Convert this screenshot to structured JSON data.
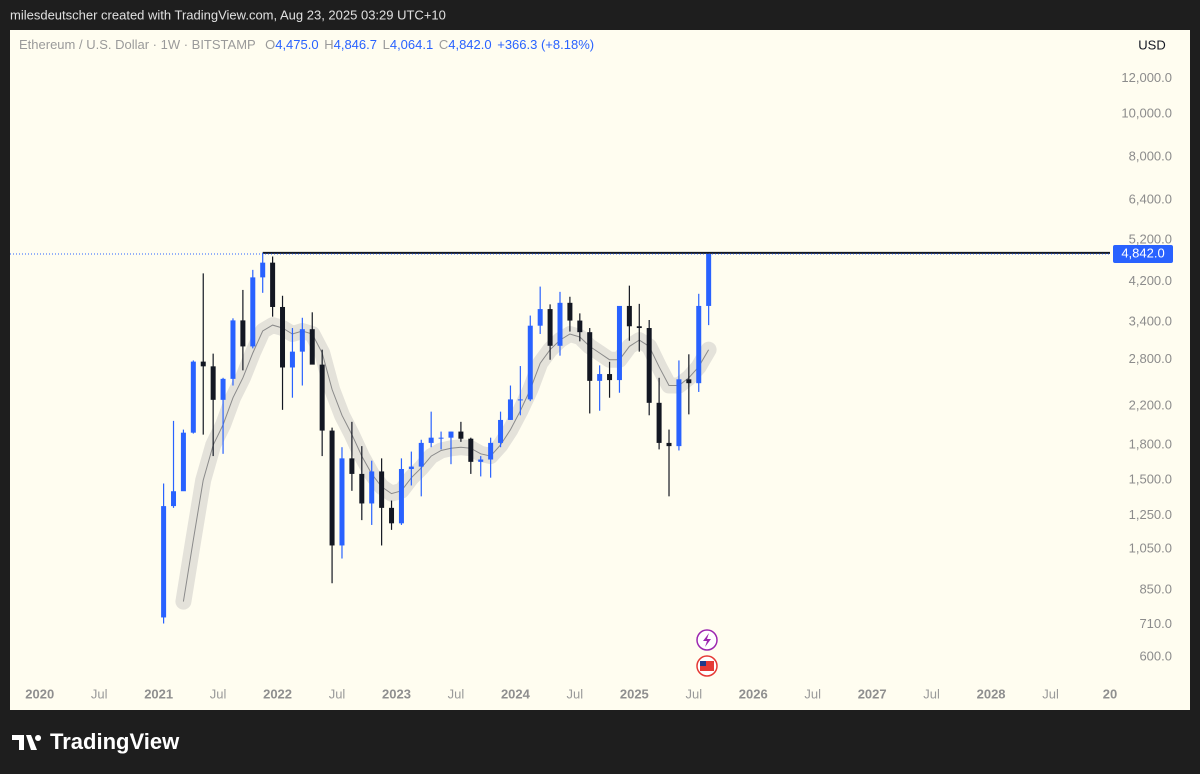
{
  "header": {
    "text": "milesdeutscher created with TradingView.com, Aug 23, 2025 03:29 UTC+10"
  },
  "footer": {
    "brand": "TradingView"
  },
  "chart_data": {
    "type": "candlestick",
    "symbol": "Ethereum / U.S. Dollar · 1W · BITSTAMP",
    "ohlc": [
      {
        "key": "O",
        "value": "4,475.0"
      },
      {
        "key": "H",
        "value": "4,846.7"
      },
      {
        "key": "L",
        "value": "4,064.1"
      },
      {
        "key": "C",
        "value": "4,842.0"
      }
    ],
    "change": "+366.3 (+8.18%)",
    "currency": "USD",
    "log_scale": true,
    "grid": false,
    "up_color": "#2962ff",
    "down_color": "#131722",
    "xlim": [
      "2019-10",
      "2029-01"
    ],
    "ylim": [
      533,
      15450
    ],
    "yticks": [
      {
        "value": 12000,
        "label": "12,000.0"
      },
      {
        "value": 10000,
        "label": "10,000.0"
      },
      {
        "value": 8000,
        "label": "8,000.0"
      },
      {
        "value": 6400,
        "label": "6,400.0"
      },
      {
        "value": 5200,
        "label": "5,200.0"
      },
      {
        "value": 4200,
        "label": "4,200.0"
      },
      {
        "value": 3400,
        "label": "3,400.0"
      },
      {
        "value": 2800,
        "label": "2,800.0"
      },
      {
        "value": 2200,
        "label": "2,200.0"
      },
      {
        "value": 1800,
        "label": "1,800.0"
      },
      {
        "value": 1500,
        "label": "1,500.0"
      },
      {
        "value": 1250,
        "label": "1,250.0"
      },
      {
        "value": 1050,
        "label": "1,050.0"
      },
      {
        "value": 850,
        "label": "850.0"
      },
      {
        "value": 710,
        "label": "710.0"
      },
      {
        "value": 600,
        "label": "600.0"
      }
    ],
    "xticks": [
      {
        "value": "2020-01",
        "label": "2020"
      },
      {
        "value": "2020-07",
        "label": "Jul"
      },
      {
        "value": "2021-01",
        "label": "2021"
      },
      {
        "value": "2021-07",
        "label": "Jul"
      },
      {
        "value": "2022-01",
        "label": "2022"
      },
      {
        "value": "2022-07",
        "label": "Jul"
      },
      {
        "value": "2023-01",
        "label": "2023"
      },
      {
        "value": "2023-07",
        "label": "Jul"
      },
      {
        "value": "2024-01",
        "label": "2024"
      },
      {
        "value": "2024-07",
        "label": "Jul"
      },
      {
        "value": "2025-01",
        "label": "2025"
      },
      {
        "value": "2025-07",
        "label": "Jul"
      },
      {
        "value": "2026-01",
        "label": "2026"
      },
      {
        "value": "2026-07",
        "label": "Jul"
      },
      {
        "value": "2027-01",
        "label": "2027"
      },
      {
        "value": "2027-07",
        "label": "Jul"
      },
      {
        "value": "2028-01",
        "label": "2028"
      },
      {
        "value": "2028-07",
        "label": "Jul"
      },
      {
        "value": "2029-01",
        "label": "20"
      }
    ],
    "x": [
      "2021-01",
      "2021-02",
      "2021-03",
      "2021-04",
      "2021-05",
      "2021-06",
      "2021-07",
      "2021-08",
      "2021-09",
      "2021-10",
      "2021-11",
      "2021-12",
      "2022-01",
      "2022-02",
      "2022-03",
      "2022-04",
      "2022-05",
      "2022-06",
      "2022-07",
      "2022-08",
      "2022-09",
      "2022-10",
      "2022-11",
      "2022-12",
      "2023-01",
      "2023-02",
      "2023-03",
      "2023-04",
      "2023-05",
      "2023-06",
      "2023-07",
      "2023-08",
      "2023-09",
      "2023-10",
      "2023-11",
      "2023-12",
      "2024-01",
      "2024-02",
      "2024-03",
      "2024-04",
      "2024-05",
      "2024-06",
      "2024-07",
      "2024-08",
      "2024-09",
      "2024-10",
      "2024-11",
      "2024-12",
      "2025-01",
      "2025-02",
      "2025-03",
      "2025-04",
      "2025-05",
      "2025-06",
      "2025-07",
      "2025-08"
    ],
    "open": [
      737,
      1312,
      1417,
      1919,
      2773,
      2706,
      2275,
      2536,
      3433,
      3000,
      4290,
      4630,
      3680,
      2690,
      2920,
      3280,
      2730,
      1940,
      1070,
      1680,
      1550,
      1330,
      1570,
      1300,
      1200,
      1590,
      1610,
      1820,
      1870,
      1870,
      1930,
      1860,
      1650,
      1670,
      1820,
      2050,
      2280,
      2280,
      3340,
      3640,
      3010,
      3760,
      3430,
      3230,
      2510,
      2600,
      2520,
      3700,
      3330,
      3300,
      2240,
      1820,
      1790,
      2530,
      2480,
      3700
    ],
    "high": [
      1475,
      2040,
      1950,
      2790,
      4380,
      2890,
      2550,
      3470,
      4020,
      4460,
      4870,
      4780,
      3900,
      3300,
      3480,
      3580,
      2950,
      1970,
      1780,
      2030,
      1790,
      1660,
      1680,
      1350,
      1680,
      1740,
      1850,
      2140,
      1930,
      1930,
      2030,
      1870,
      1700,
      1870,
      2140,
      2450,
      2710,
      3520,
      4090,
      3730,
      3980,
      3880,
      3560,
      3300,
      2720,
      2770,
      3680,
      4110,
      3740,
      3440,
      2550,
      1950,
      2790,
      2880,
      3940,
      4847
    ],
    "low": [
      714,
      1300,
      1530,
      1910,
      1900,
      1700,
      1720,
      2450,
      2650,
      2970,
      3960,
      3500,
      2160,
      2300,
      2450,
      2770,
      1700,
      880,
      1000,
      1420,
      1220,
      1190,
      1070,
      1160,
      1190,
      1460,
      1380,
      1780,
      1760,
      1630,
      1830,
      1550,
      1530,
      1520,
      1780,
      2050,
      2100,
      2260,
      3200,
      2800,
      2860,
      3240,
      3080,
      2120,
      2150,
      2300,
      2360,
      3090,
      2920,
      2100,
      1760,
      1380,
      1750,
      2110,
      2370,
      3350
    ],
    "close": [
      1312,
      1417,
      1919,
      2773,
      2706,
      2275,
      2536,
      3433,
      3000,
      4290,
      4630,
      3680,
      2690,
      2920,
      3280,
      2730,
      1940,
      1070,
      1680,
      1550,
      1330,
      1570,
      1300,
      1200,
      1590,
      1610,
      1820,
      1870,
      1870,
      1930,
      1860,
      1650,
      1670,
      1820,
      2050,
      2280,
      2280,
      3340,
      3640,
      3010,
      3760,
      3430,
      3230,
      2510,
      2600,
      2520,
      3700,
      3330,
      3300,
      2240,
      1820,
      1790,
      2530,
      2480,
      3700,
      4842
    ],
    "ma": {
      "color": "#8a8a8a",
      "values": [
        null,
        null,
        800,
        1100,
        1500,
        1800,
        2000,
        2300,
        2550,
        2900,
        3250,
        3350,
        3300,
        3200,
        3250,
        3200,
        2900,
        2400,
        2100,
        1900,
        1700,
        1550,
        1450,
        1400,
        1420,
        1520,
        1600,
        1700,
        1750,
        1770,
        1780,
        1770,
        1720,
        1700,
        1800,
        1950,
        2150,
        2400,
        2750,
        2950,
        3100,
        3200,
        3150,
        3000,
        2900,
        2800,
        2800,
        3000,
        3100,
        3000,
        2700,
        2450,
        2450,
        2550,
        2700,
        2950
      ]
    },
    "resistance": {
      "value": 4870,
      "start": "2021-11"
    },
    "last_price": {
      "value": 4842,
      "label": "4,842.0",
      "color": "#2962ff"
    }
  }
}
